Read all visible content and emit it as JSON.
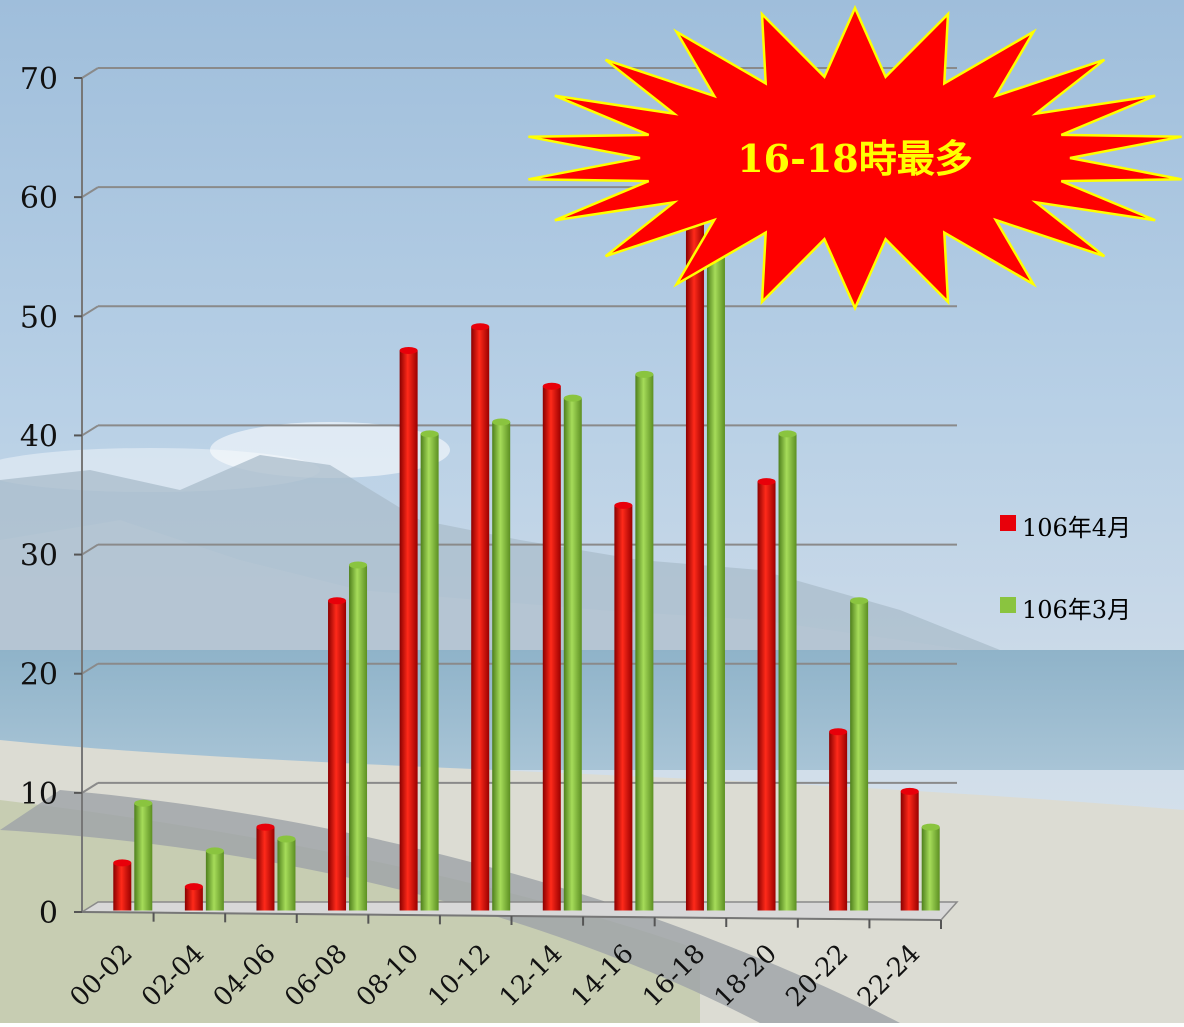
{
  "chart_data": {
    "type": "bar",
    "title": "",
    "xlabel": "",
    "ylabel": "",
    "ylim": [
      0,
      70
    ],
    "yticks": [
      "0",
      "10",
      "20",
      "30",
      "40",
      "50",
      "60",
      "70"
    ],
    "grid": true,
    "legend_position": "right",
    "categories": [
      "00-02",
      "02-04",
      "04-06",
      "06-08",
      "08-10",
      "10-12",
      "12-14",
      "14-16",
      "16-18",
      "18-20",
      "20-22",
      "22-24"
    ],
    "series": [
      {
        "name": "106年4月",
        "color": "#e8000a",
        "values": [
          4,
          2,
          7,
          26,
          47,
          49,
          44,
          34,
          59,
          36,
          15,
          10
        ]
      },
      {
        "name": "106年3月",
        "color": "#8ac43f",
        "values": [
          9,
          5,
          6,
          29,
          40,
          41,
          43,
          45,
          56,
          40,
          26,
          7
        ]
      }
    ],
    "callout": {
      "text": "16-18時最多",
      "fill": "#ff0000",
      "stroke": "#ffff00",
      "text_color": "#ffff00"
    }
  }
}
